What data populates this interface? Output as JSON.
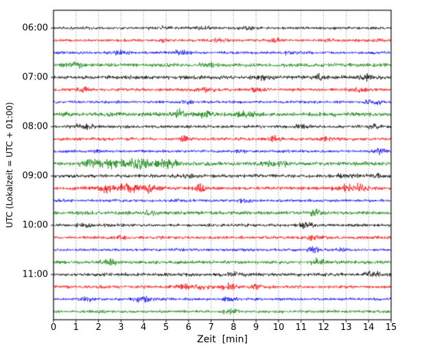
{
  "figure": {
    "background": "#ffffff",
    "border_color": "#000000"
  },
  "chart_data": {
    "type": "line",
    "subtype": "helicorder_seismogram_dayplot",
    "title": "",
    "xlabel": "Zeit  [min]",
    "ylabel": "UTC (Lokalzeit = UTC + 01:00)",
    "xlim": [
      0,
      15
    ],
    "x_tick_labels": [
      "0",
      "1",
      "2",
      "3",
      "4",
      "5",
      "6",
      "7",
      "8",
      "9",
      "10",
      "11",
      "12",
      "13",
      "14",
      "15"
    ],
    "y_tick_labels": [
      "06:00",
      "07:00",
      "08:00",
      "09:00",
      "10:00",
      "11:00"
    ],
    "hour_rows": [
      0,
      4,
      8,
      12,
      16,
      20
    ],
    "grid": {
      "vertical": true,
      "style": "dotted",
      "color": "#444444"
    },
    "legend": "none",
    "rows_per_hour": 4,
    "minutes_per_row": 15,
    "color_cycle": [
      "#000000",
      "#ff0000",
      "#0000ff",
      "#008000"
    ],
    "traces": [
      {
        "start": "06:00",
        "color": "#000000",
        "noise": 0.9,
        "bursts": [
          [
            4.9,
            0.5,
            0.3
          ],
          [
            6.6,
            0.9,
            0.35
          ],
          [
            8.6,
            1.0,
            0.3
          ]
        ]
      },
      {
        "start": "06:15",
        "color": "#ff0000",
        "noise": 0.9,
        "bursts": [
          [
            5.0,
            0.9,
            0.25
          ],
          [
            7.4,
            1.1,
            0.3
          ],
          [
            9.9,
            0.9,
            0.35
          ],
          [
            12.3,
            0.8,
            0.3
          ],
          [
            14.4,
            0.7,
            0.2
          ]
        ]
      },
      {
        "start": "06:30",
        "color": "#0000ff",
        "noise": 0.9,
        "bursts": [
          [
            3.0,
            1.3,
            0.3
          ],
          [
            5.7,
            1.4,
            0.35
          ],
          [
            10.5,
            0.6,
            0.3
          ]
        ]
      },
      {
        "start": "06:45",
        "color": "#008000",
        "noise": 1.2,
        "bursts": [
          [
            1.0,
            0.8,
            0.3
          ],
          [
            6.9,
            0.6,
            0.4
          ]
        ]
      },
      {
        "start": "07:00",
        "color": "#000000",
        "noise": 1.2,
        "bursts": [
          [
            9.4,
            0.8,
            0.4
          ],
          [
            11.8,
            1.0,
            0.3
          ],
          [
            14.0,
            1.3,
            0.4
          ]
        ]
      },
      {
        "start": "07:15",
        "color": "#ff0000",
        "noise": 1.0,
        "bursts": [
          [
            1.3,
            1.3,
            0.3
          ],
          [
            6.8,
            0.9,
            0.4
          ],
          [
            9.1,
            1.1,
            0.35
          ],
          [
            13.5,
            1.3,
            0.3
          ]
        ]
      },
      {
        "start": "07:30",
        "color": "#0000ff",
        "noise": 0.9,
        "bursts": [
          [
            6.0,
            0.7,
            0.3
          ],
          [
            14.2,
            1.8,
            0.3
          ]
        ]
      },
      {
        "start": "07:45",
        "color": "#008000",
        "noise": 1.3,
        "bursts": [
          [
            5.5,
            2.2,
            0.25
          ],
          [
            6.8,
            1.0,
            0.3
          ],
          [
            8.6,
            0.8,
            0.5
          ]
        ]
      },
      {
        "start": "08:00",
        "color": "#000000",
        "noise": 1.0,
        "bursts": [
          [
            1.4,
            1.5,
            0.4
          ],
          [
            11.0,
            1.1,
            0.35
          ],
          [
            14.2,
            0.9,
            0.3
          ]
        ]
      },
      {
        "start": "08:15",
        "color": "#ff0000",
        "noise": 1.0,
        "bursts": [
          [
            5.8,
            2.6,
            0.15
          ],
          [
            9.8,
            1.2,
            0.35
          ],
          [
            12.1,
            0.7,
            0.3
          ]
        ]
      },
      {
        "start": "08:30",
        "color": "#0000ff",
        "noise": 0.9,
        "bursts": [
          [
            2.0,
            0.6,
            0.3
          ],
          [
            8.3,
            0.6,
            0.3
          ],
          [
            14.5,
            1.7,
            0.25
          ]
        ]
      },
      {
        "start": "08:45",
        "color": "#008000",
        "noise": 1.2,
        "bursts": [
          [
            1.6,
            1.6,
            0.4
          ],
          [
            2.6,
            2.0,
            0.5
          ],
          [
            3.9,
            2.2,
            0.6
          ],
          [
            5.1,
            1.6,
            0.4
          ],
          [
            9.9,
            1.2,
            0.5
          ]
        ]
      },
      {
        "start": "09:00",
        "color": "#000000",
        "noise": 1.1,
        "bursts": [
          [
            6.0,
            0.6,
            0.4
          ],
          [
            13.0,
            0.7,
            0.5
          ],
          [
            14.3,
            0.8,
            0.3
          ]
        ]
      },
      {
        "start": "09:15",
        "color": "#ff0000",
        "noise": 1.1,
        "bursts": [
          [
            2.4,
            1.8,
            0.35
          ],
          [
            3.4,
            2.2,
            0.5
          ],
          [
            4.4,
            1.8,
            0.4
          ],
          [
            6.5,
            1.7,
            0.3
          ],
          [
            13.3,
            1.8,
            0.7
          ]
        ]
      },
      {
        "start": "09:30",
        "color": "#0000ff",
        "noise": 0.9,
        "bursts": [
          [
            0.5,
            1.4,
            0.25
          ],
          [
            5.6,
            0.7,
            0.3
          ],
          [
            8.5,
            1.4,
            0.3
          ]
        ]
      },
      {
        "start": "09:45",
        "color": "#008000",
        "noise": 1.1,
        "bursts": [
          [
            4.3,
            2.0,
            0.15
          ],
          [
            11.6,
            1.2,
            0.3
          ]
        ]
      },
      {
        "start": "10:00",
        "color": "#000000",
        "noise": 1.0,
        "bursts": [
          [
            1.4,
            1.1,
            0.3
          ],
          [
            11.2,
            1.6,
            0.35
          ]
        ]
      },
      {
        "start": "10:15",
        "color": "#ff0000",
        "noise": 1.0,
        "bursts": [
          [
            3.0,
            0.6,
            0.3
          ],
          [
            11.7,
            1.1,
            0.5
          ]
        ]
      },
      {
        "start": "10:30",
        "color": "#0000ff",
        "noise": 0.9,
        "bursts": [
          [
            5.6,
            0.7,
            0.3
          ],
          [
            11.5,
            1.3,
            0.3
          ],
          [
            12.7,
            1.1,
            0.3
          ]
        ]
      },
      {
        "start": "10:45",
        "color": "#008000",
        "noise": 1.1,
        "bursts": [
          [
            2.5,
            1.3,
            0.3
          ],
          [
            11.8,
            1.4,
            0.3
          ]
        ]
      },
      {
        "start": "11:00",
        "color": "#000000",
        "noise": 1.1,
        "bursts": [
          [
            8.0,
            0.6,
            0.4
          ],
          [
            14.2,
            1.2,
            0.3
          ]
        ]
      },
      {
        "start": "11:15",
        "color": "#ff0000",
        "noise": 1.0,
        "bursts": [
          [
            5.7,
            1.2,
            0.3
          ],
          [
            6.6,
            1.4,
            0.3
          ],
          [
            7.8,
            1.9,
            0.35
          ],
          [
            9.0,
            0.8,
            0.3
          ]
        ]
      },
      {
        "start": "11:30",
        "color": "#0000ff",
        "noise": 0.9,
        "bursts": [
          [
            1.4,
            1.4,
            0.3
          ],
          [
            4.0,
            1.4,
            0.35
          ],
          [
            7.8,
            1.2,
            0.3
          ]
        ]
      },
      {
        "start": "11:45",
        "color": "#008000",
        "noise": 0.9,
        "bursts": [
          [
            2.0,
            0.5,
            0.3
          ],
          [
            7.8,
            1.4,
            0.3
          ]
        ]
      }
    ]
  }
}
